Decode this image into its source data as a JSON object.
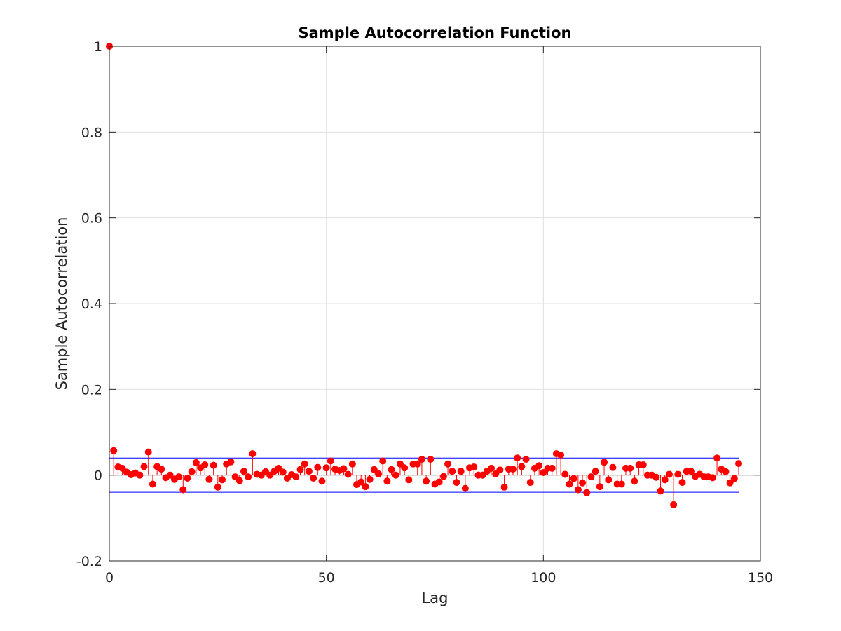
{
  "chart_data": {
    "type": "scatter",
    "style": "stem",
    "title": "Sample Autocorrelation Function",
    "xlabel": "Lag",
    "ylabel": "Sample Autocorrelation",
    "xlim": [
      0,
      150
    ],
    "ylim": [
      -0.2,
      1
    ],
    "xticks": [
      0,
      50,
      100,
      150
    ],
    "xtick_labels": [
      "0",
      "50",
      "100",
      "150"
    ],
    "yticks": [
      -0.2,
      0,
      0.2,
      0.4,
      0.6,
      0.8,
      1
    ],
    "ytick_labels": [
      "-0.2",
      "0",
      "0.2",
      "0.4",
      "0.6",
      "0.8",
      "1"
    ],
    "grid": true,
    "confidence_bounds": {
      "upper": 0.04,
      "lower": -0.04,
      "x_range": [
        0,
        145
      ],
      "color": "#0000ff"
    },
    "colors": {
      "stem": "#ff0000",
      "marker": "#ff0000",
      "zero_line": "#000000",
      "grid": "#e0e0e0",
      "axes": "#262626"
    },
    "series": [
      {
        "x": [
          0,
          1,
          2,
          3,
          4,
          5,
          6,
          7,
          8,
          9,
          10,
          11,
          12,
          13,
          14,
          15,
          16,
          17,
          18,
          19,
          20,
          21,
          22,
          23,
          24,
          25,
          26,
          27,
          28,
          29,
          30,
          31,
          32,
          33,
          34,
          35,
          36,
          37,
          38,
          39,
          40,
          41,
          42,
          43,
          44,
          45,
          46,
          47,
          48,
          49,
          50,
          51,
          52,
          53,
          54,
          55,
          56,
          57,
          58,
          59,
          60,
          61,
          62,
          63,
          64,
          65,
          66,
          67,
          68,
          69,
          70,
          71,
          72,
          73,
          74,
          75,
          76,
          77,
          78,
          79,
          80,
          81,
          82,
          83,
          84,
          85,
          86,
          87,
          88,
          89,
          90,
          91,
          92,
          93,
          94,
          95,
          96,
          97,
          98,
          99,
          100,
          101,
          102,
          103,
          104,
          105,
          106,
          107,
          108,
          109,
          110,
          111,
          112,
          113,
          114,
          115,
          116,
          117,
          118,
          119,
          120,
          121,
          122,
          123,
          124,
          125,
          126,
          127,
          128,
          129,
          130,
          131,
          132,
          133,
          134,
          135,
          136,
          137,
          138,
          139,
          140,
          141,
          142,
          143,
          144,
          145
        ],
        "values": [
          1.0,
          0.057,
          0.019,
          0.016,
          0.007,
          0.001,
          0.005,
          0.0,
          0.02,
          0.054,
          -0.021,
          0.02,
          0.014,
          -0.006,
          0.0,
          -0.01,
          -0.004,
          -0.034,
          -0.007,
          0.008,
          0.029,
          0.017,
          0.024,
          -0.01,
          0.023,
          -0.028,
          -0.011,
          0.026,
          0.031,
          -0.004,
          -0.013,
          0.009,
          -0.004,
          0.05,
          0.002,
          0.0,
          0.008,
          0.0,
          0.009,
          0.016,
          0.007,
          -0.007,
          0.001,
          -0.004,
          0.013,
          0.026,
          0.009,
          -0.007,
          0.018,
          -0.014,
          0.017,
          0.033,
          0.014,
          0.011,
          0.015,
          0.002,
          0.026,
          -0.022,
          -0.016,
          -0.027,
          -0.01,
          0.013,
          0.003,
          0.033,
          -0.014,
          0.013,
          0.0,
          0.026,
          0.017,
          -0.011,
          0.026,
          0.026,
          0.037,
          -0.014,
          0.037,
          -0.021,
          -0.016,
          -0.003,
          0.026,
          0.009,
          -0.017,
          0.009,
          -0.031,
          0.017,
          0.019,
          0.0,
          0.0,
          0.009,
          0.016,
          0.003,
          0.012,
          -0.028,
          0.014,
          0.014,
          0.04,
          0.02,
          0.037,
          -0.017,
          0.016,
          0.022,
          0.006,
          0.016,
          0.016,
          0.05,
          0.047,
          0.002,
          -0.021,
          -0.008,
          -0.034,
          -0.018,
          -0.041,
          -0.004,
          0.009,
          -0.027,
          0.03,
          -0.011,
          0.018,
          -0.021,
          -0.021,
          0.016,
          0.016,
          -0.014,
          0.024,
          0.024,
          0.0,
          0.0,
          -0.005,
          -0.037,
          -0.011,
          0.002,
          -0.069,
          0.002,
          -0.017,
          0.009,
          0.009,
          -0.003,
          0.002,
          -0.004,
          -0.004,
          -0.006,
          0.04,
          0.014,
          0.008,
          -0.018,
          -0.008,
          0.027
        ]
      }
    ]
  }
}
